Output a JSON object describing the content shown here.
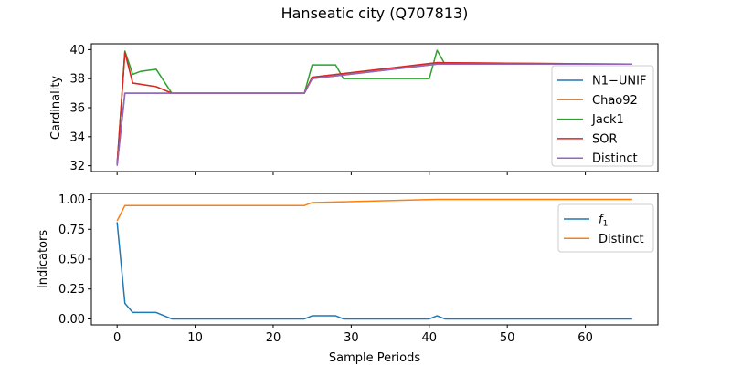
{
  "figure": {
    "title": "Hanseatic city (Q707813)"
  },
  "chart_data": [
    {
      "type": "line",
      "title": "",
      "xlabel": "",
      "ylabel": "Cardinality",
      "xlim": [
        -3.3,
        69.3
      ],
      "ylim": [
        31.6,
        40.4
      ],
      "xticks": [
        0,
        10,
        20,
        30,
        40,
        50,
        60
      ],
      "yticks": [
        32,
        34,
        36,
        38,
        40
      ],
      "show_xtick_labels": false,
      "grid": false,
      "legend_position": "right",
      "series": [
        {
          "name": "N1−UNIF",
          "color": "#1f77b4",
          "x": [
            0,
            1,
            2,
            24,
            25,
            41,
            66
          ],
          "y": [
            32,
            37,
            37,
            37,
            38,
            39,
            39
          ]
        },
        {
          "name": "Chao92",
          "color": "#ff7f0e",
          "x": [
            0,
            1,
            2,
            5,
            7,
            24,
            25,
            41,
            66
          ],
          "y": [
            32.1,
            39.85,
            37.7,
            37.45,
            37,
            37,
            38.1,
            39.1,
            39
          ]
        },
        {
          "name": "Jack1",
          "color": "#2ca02c",
          "x": [
            0,
            1,
            2,
            3,
            5,
            7,
            24,
            25,
            28,
            29,
            40,
            41,
            42,
            66
          ],
          "y": [
            32.1,
            39.9,
            38.3,
            38.5,
            38.65,
            37,
            37,
            38.95,
            38.95,
            38,
            38,
            39.95,
            39,
            39
          ]
        },
        {
          "name": "SOR",
          "color": "#d62728",
          "x": [
            0,
            1,
            2,
            5,
            7,
            24,
            25,
            41,
            66
          ],
          "y": [
            32.1,
            39.8,
            37.7,
            37.45,
            37,
            37,
            38.1,
            39.1,
            39
          ]
        },
        {
          "name": "Distinct",
          "color": "#9467bd",
          "x": [
            0,
            1,
            2,
            24,
            25,
            41,
            66
          ],
          "y": [
            32,
            37,
            37,
            37,
            38,
            39,
            39
          ]
        }
      ]
    },
    {
      "type": "line",
      "title": "",
      "xlabel": "Sample Periods",
      "ylabel": "Indicators",
      "xlim": [
        -3.3,
        69.3
      ],
      "ylim": [
        -0.05,
        1.05
      ],
      "xticks": [
        0,
        10,
        20,
        30,
        40,
        50,
        60
      ],
      "xtick_labels": [
        "0",
        "10",
        "20",
        "30",
        "40",
        "50",
        "60"
      ],
      "yticks": [
        0.0,
        0.25,
        0.5,
        0.75,
        1.0
      ],
      "ytick_labels": [
        "0.00",
        "0.25",
        "0.50",
        "0.75",
        "1.00"
      ],
      "show_xtick_labels": true,
      "grid": false,
      "legend_position": "top-right",
      "series": [
        {
          "name": "f1",
          "name_main": "f",
          "name_sub": "1",
          "color": "#1f77b4",
          "x": [
            0,
            1,
            2,
            5,
            7,
            24,
            25,
            28,
            29,
            40,
            41,
            42,
            66
          ],
          "y": [
            0.81,
            0.13,
            0.054,
            0.054,
            0.0,
            0.0,
            0.026,
            0.026,
            0.0,
            0.0,
            0.026,
            0.0,
            0.0
          ]
        },
        {
          "name": "Distinct",
          "color": "#ff7f0e",
          "x": [
            0,
            1,
            2,
            24,
            25,
            41,
            66
          ],
          "y": [
            0.821,
            0.949,
            0.949,
            0.949,
            0.974,
            1.0,
            1.0
          ]
        }
      ]
    }
  ]
}
